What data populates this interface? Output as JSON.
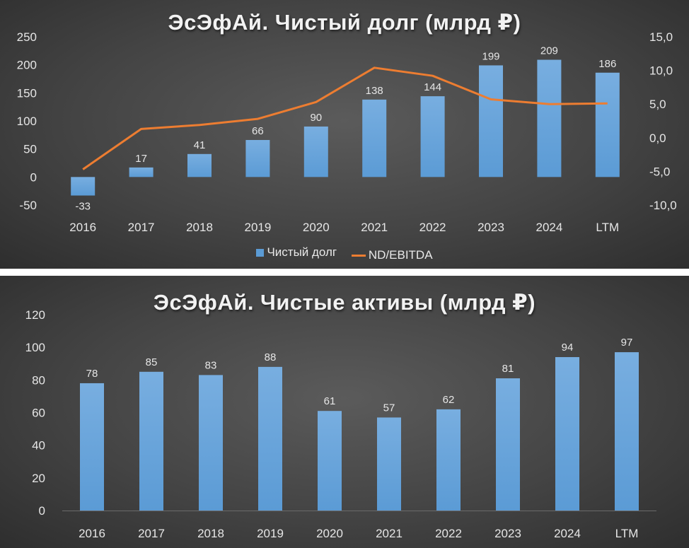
{
  "colors": {
    "bar": "#5b9bd5",
    "bar_light": "#78aee0",
    "line": "#ed7d31",
    "text": "#e6e6e6",
    "grid": "#6a6a6a"
  },
  "chart_data": [
    {
      "type": "bar",
      "title": "ЭсЭфАй. Чистый долг (млрд ₽)",
      "categories": [
        "2016",
        "2017",
        "2018",
        "2019",
        "2020",
        "2021",
        "2022",
        "2023",
        "2024",
        "LTM"
      ],
      "series": [
        {
          "name": "Чистый долг",
          "type": "bar",
          "axis": "left",
          "values": [
            -33,
            17,
            41,
            66,
            90,
            138,
            144,
            199,
            209,
            186
          ]
        },
        {
          "name": "ND/EBITDA",
          "type": "line",
          "axis": "right",
          "values": [
            -4.7,
            1.3,
            1.9,
            2.8,
            5.3,
            10.4,
            9.2,
            5.7,
            5.0,
            5.1
          ]
        }
      ],
      "ylim": [
        -50,
        250
      ],
      "yticks": [
        "-50",
        "0",
        "50",
        "100",
        "150",
        "200",
        "250"
      ],
      "y2lim": [
        -10,
        15
      ],
      "y2ticks": [
        "-10,0",
        "-5,0",
        "0,0",
        "5,0",
        "10,0",
        "15,0"
      ],
      "data_labels": [
        "-33",
        "17",
        "41",
        "66",
        "90",
        "138",
        "144",
        "199",
        "209",
        "186"
      ],
      "legend_position": "bottom",
      "grid": false
    },
    {
      "type": "bar",
      "title": "ЭсЭфАй. Чистые активы (млрд ₽)",
      "categories": [
        "2016",
        "2017",
        "2018",
        "2019",
        "2020",
        "2021",
        "2022",
        "2023",
        "2024",
        "LTM"
      ],
      "values": [
        78,
        85,
        83,
        88,
        61,
        57,
        62,
        81,
        94,
        97
      ],
      "ylim": [
        0,
        120
      ],
      "yticks": [
        "0",
        "20",
        "40",
        "60",
        "80",
        "100",
        "120"
      ],
      "data_labels": [
        "78",
        "85",
        "83",
        "88",
        "61",
        "57",
        "62",
        "81",
        "94",
        "97"
      ],
      "grid": false
    }
  ]
}
